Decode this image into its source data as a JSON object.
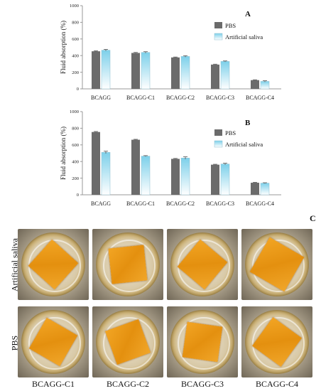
{
  "chart_data": [
    {
      "panel": "A",
      "type": "bar",
      "title": "",
      "xlabel": "",
      "ylabel": "Fluid absorption (%)",
      "ylim": [
        0,
        1000
      ],
      "yticks": [
        "0",
        "200",
        "400",
        "600",
        "800",
        "1000"
      ],
      "categories": [
        "BCAGG",
        "BCAGG-C1",
        "BCAGG-C2",
        "BCAGG-C3",
        "BCAGG-C4"
      ],
      "series": [
        {
          "name": "PBS",
          "values": [
            452,
            432,
            378,
            292,
            105
          ],
          "errors": [
            6,
            6,
            5,
            5,
            4
          ]
        },
        {
          "name": "Artificial saliva",
          "values": [
            465,
            438,
            390,
            330,
            90
          ],
          "errors": [
            10,
            9,
            9,
            6,
            8
          ]
        }
      ],
      "legend": "top-right",
      "grid": false
    },
    {
      "panel": "B",
      "type": "bar",
      "title": "",
      "xlabel": "",
      "ylabel": "Fluid absorption (%)",
      "ylim": [
        0,
        1000
      ],
      "yticks": [
        "0",
        "200",
        "400",
        "600",
        "800",
        "1000"
      ],
      "categories": [
        "BCAGG",
        "BCAGG-C1",
        "BCAGG-C2",
        "BCAGG-C3",
        "BCAGG-C4"
      ],
      "series": [
        {
          "name": "PBS",
          "values": [
            755,
            662,
            432,
            362,
            145
          ],
          "errors": [
            6,
            5,
            5,
            5,
            5
          ]
        },
        {
          "name": "Artificial saliva",
          "values": [
            510,
            465,
            442,
            370,
            140
          ],
          "errors": [
            14,
            6,
            15,
            10,
            5
          ]
        }
      ],
      "legend": "top-right",
      "grid": false
    }
  ],
  "colors": {
    "pbs": "#6b6b6b",
    "saliva_top": "#7dd0ea",
    "saliva_bottom": "#ffffff",
    "axis": "#999999"
  },
  "photos": {
    "panel_label": "C",
    "row_labels": [
      "Artificial saliva",
      "PBS"
    ],
    "column_labels": [
      "BCAGG-C1",
      "BCAGG-C2",
      "BCAGG-C3",
      "BCAGG-C4"
    ]
  }
}
